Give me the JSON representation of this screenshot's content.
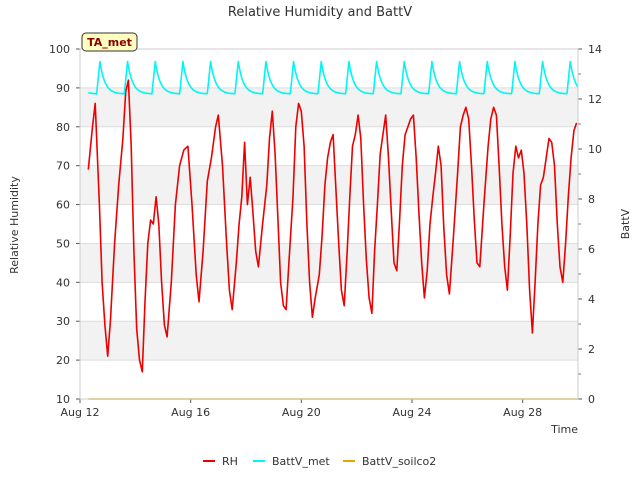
{
  "chart_data": {
    "type": "line",
    "title": "Relative Humidity and BattV",
    "xlabel": "Time",
    "ylabel": "Relative Humidity",
    "y2label": "BattV",
    "station_label": "TA_met",
    "x_ticks": [
      "Aug 12",
      "Aug 16",
      "Aug 20",
      "Aug 24",
      "Aug 28"
    ],
    "x_range_days": [
      0,
      18
    ],
    "ylim": [
      10,
      100
    ],
    "y_ticks": [
      "10",
      "20",
      "30",
      "40",
      "50",
      "60",
      "70",
      "80",
      "90",
      "100"
    ],
    "y2lim": [
      0,
      14
    ],
    "y2_ticks": [
      "0",
      "2",
      "4",
      "6",
      "8",
      "10",
      "12",
      "14"
    ],
    "grid": "horizontal bands",
    "legend_position": "bottom-center",
    "series": [
      {
        "name": "RH",
        "axis": "left",
        "color": "#ee0000",
        "points": [
          [
            0.3,
            69
          ],
          [
            0.45,
            80
          ],
          [
            0.55,
            86
          ],
          [
            0.7,
            60
          ],
          [
            0.8,
            40
          ],
          [
            0.9,
            29
          ],
          [
            1.0,
            21
          ],
          [
            1.1,
            30
          ],
          [
            1.25,
            50
          ],
          [
            1.4,
            65
          ],
          [
            1.55,
            77
          ],
          [
            1.65,
            89
          ],
          [
            1.75,
            92
          ],
          [
            1.85,
            75
          ],
          [
            1.95,
            48
          ],
          [
            2.05,
            28
          ],
          [
            2.15,
            20
          ],
          [
            2.25,
            17
          ],
          [
            2.35,
            35
          ],
          [
            2.45,
            50
          ],
          [
            2.55,
            56
          ],
          [
            2.65,
            55
          ],
          [
            2.75,
            62
          ],
          [
            2.85,
            55
          ],
          [
            2.95,
            40
          ],
          [
            3.05,
            29
          ],
          [
            3.15,
            26
          ],
          [
            3.3,
            40
          ],
          [
            3.45,
            60
          ],
          [
            3.6,
            70
          ],
          [
            3.75,
            74
          ],
          [
            3.9,
            75
          ],
          [
            4.05,
            60
          ],
          [
            4.2,
            42
          ],
          [
            4.3,
            35
          ],
          [
            4.45,
            48
          ],
          [
            4.6,
            66
          ],
          [
            4.75,
            72
          ],
          [
            4.9,
            80
          ],
          [
            5.0,
            83
          ],
          [
            5.15,
            70
          ],
          [
            5.3,
            50
          ],
          [
            5.4,
            38
          ],
          [
            5.5,
            33
          ],
          [
            5.65,
            45
          ],
          [
            5.75,
            55
          ],
          [
            5.85,
            62
          ],
          [
            5.95,
            76
          ],
          [
            6.05,
            60
          ],
          [
            6.15,
            67
          ],
          [
            6.25,
            58
          ],
          [
            6.35,
            48
          ],
          [
            6.45,
            44
          ],
          [
            6.6,
            55
          ],
          [
            6.75,
            65
          ],
          [
            6.85,
            77
          ],
          [
            6.95,
            84
          ],
          [
            7.05,
            73
          ],
          [
            7.15,
            57
          ],
          [
            7.25,
            40
          ],
          [
            7.35,
            34
          ],
          [
            7.45,
            33
          ],
          [
            7.55,
            45
          ],
          [
            7.7,
            62
          ],
          [
            7.8,
            80
          ],
          [
            7.9,
            86
          ],
          [
            8.0,
            84
          ],
          [
            8.1,
            75
          ],
          [
            8.2,
            55
          ],
          [
            8.3,
            40
          ],
          [
            8.4,
            31
          ],
          [
            8.5,
            36
          ],
          [
            8.65,
            42
          ],
          [
            8.75,
            52
          ],
          [
            8.85,
            65
          ],
          [
            8.95,
            72
          ],
          [
            9.05,
            76
          ],
          [
            9.15,
            78
          ],
          [
            9.25,
            64
          ],
          [
            9.35,
            50
          ],
          [
            9.45,
            38
          ],
          [
            9.55,
            34
          ],
          [
            9.65,
            47
          ],
          [
            9.75,
            62
          ],
          [
            9.85,
            75
          ],
          [
            9.95,
            78
          ],
          [
            10.05,
            83
          ],
          [
            10.15,
            77
          ],
          [
            10.25,
            60
          ],
          [
            10.35,
            46
          ],
          [
            10.45,
            36
          ],
          [
            10.55,
            32
          ],
          [
            10.65,
            48
          ],
          [
            10.75,
            60
          ],
          [
            10.85,
            73
          ],
          [
            10.95,
            78
          ],
          [
            11.05,
            83
          ],
          [
            11.15,
            72
          ],
          [
            11.25,
            58
          ],
          [
            11.35,
            45
          ],
          [
            11.45,
            43
          ],
          [
            11.55,
            56
          ],
          [
            11.65,
            70
          ],
          [
            11.75,
            78
          ],
          [
            11.85,
            80
          ],
          [
            11.95,
            82
          ],
          [
            12.05,
            83
          ],
          [
            12.15,
            72
          ],
          [
            12.25,
            58
          ],
          [
            12.35,
            45
          ],
          [
            12.45,
            36
          ],
          [
            12.55,
            43
          ],
          [
            12.65,
            55
          ],
          [
            12.75,
            62
          ],
          [
            12.85,
            68
          ],
          [
            12.95,
            75
          ],
          [
            13.05,
            70
          ],
          [
            13.15,
            54
          ],
          [
            13.25,
            42
          ],
          [
            13.35,
            37
          ],
          [
            13.5,
            52
          ],
          [
            13.65,
            68
          ],
          [
            13.75,
            80
          ],
          [
            13.85,
            83
          ],
          [
            13.95,
            85
          ],
          [
            14.05,
            82
          ],
          [
            14.15,
            70
          ],
          [
            14.25,
            56
          ],
          [
            14.35,
            45
          ],
          [
            14.45,
            44
          ],
          [
            14.6,
            60
          ],
          [
            14.75,
            75
          ],
          [
            14.85,
            82
          ],
          [
            14.95,
            85
          ],
          [
            15.05,
            83
          ],
          [
            15.15,
            70
          ],
          [
            15.25,
            55
          ],
          [
            15.35,
            44
          ],
          [
            15.45,
            38
          ],
          [
            15.55,
            52
          ],
          [
            15.65,
            68
          ],
          [
            15.75,
            75
          ],
          [
            15.85,
            72
          ],
          [
            15.95,
            74
          ],
          [
            16.05,
            68
          ],
          [
            16.15,
            55
          ],
          [
            16.25,
            38
          ],
          [
            16.35,
            27
          ],
          [
            16.45,
            40
          ],
          [
            16.55,
            55
          ],
          [
            16.65,
            65
          ],
          [
            16.75,
            67
          ],
          [
            16.85,
            72
          ],
          [
            16.95,
            77
          ],
          [
            17.05,
            76
          ],
          [
            17.15,
            70
          ],
          [
            17.25,
            55
          ],
          [
            17.35,
            44
          ],
          [
            17.45,
            40
          ],
          [
            17.55,
            50
          ],
          [
            17.65,
            62
          ],
          [
            17.75,
            72
          ],
          [
            17.85,
            79
          ],
          [
            17.95,
            81
          ]
        ]
      },
      {
        "name": "BattV_met",
        "axis": "right",
        "color": "#00f5f5",
        "period_days": 1.0,
        "phase_day": 0.6,
        "base": 12.2,
        "peak": 13.5,
        "start_day": 0.3,
        "end_day": 18.0
      },
      {
        "name": "BattV_soilco2",
        "axis": "right",
        "color": "#e6a800",
        "points": [
          [
            0.3,
            0
          ],
          [
            18.0,
            0
          ]
        ]
      }
    ]
  }
}
